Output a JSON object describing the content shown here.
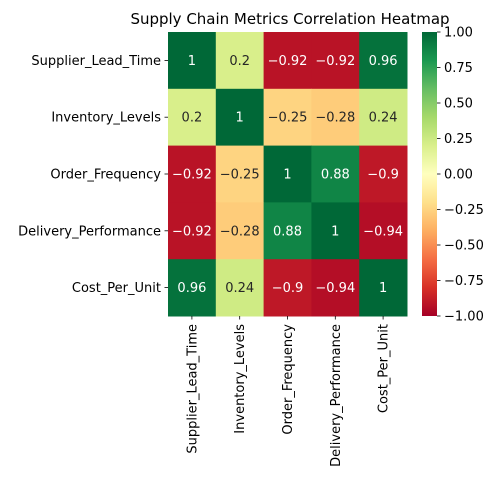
{
  "chart_data": {
    "type": "heatmap",
    "title": "Supply Chain Metrics Correlation Heatmap",
    "xlabel": "",
    "ylabel": "",
    "rows": [
      "Supplier_Lead_Time",
      "Inventory_Levels",
      "Order_Frequency",
      "Delivery_Performance",
      "Cost_Per_Unit"
    ],
    "columns": [
      "Supplier_Lead_Time",
      "Inventory_Levels",
      "Order_Frequency",
      "Delivery_Performance",
      "Cost_Per_Unit"
    ],
    "values": [
      [
        1,
        0.2,
        -0.92,
        -0.92,
        0.96
      ],
      [
        0.2,
        1,
        -0.25,
        -0.28,
        0.24
      ],
      [
        -0.92,
        -0.25,
        1,
        0.88,
        -0.9
      ],
      [
        -0.92,
        -0.28,
        0.88,
        1,
        -0.94
      ],
      [
        0.96,
        0.24,
        -0.9,
        -0.94,
        1
      ]
    ],
    "annotated": true,
    "colormap": "RdYlGn",
    "vmin": -1,
    "vmax": 1,
    "colorbar": {
      "ticks": [
        "1.00",
        "0.75",
        "0.50",
        "0.25",
        "0.00",
        "−0.25",
        "−0.50",
        "−0.75",
        "−1.00"
      ],
      "tick_values": [
        1,
        0.75,
        0.5,
        0.25,
        0,
        -0.25,
        -0.5,
        -0.75,
        -1
      ]
    }
  }
}
